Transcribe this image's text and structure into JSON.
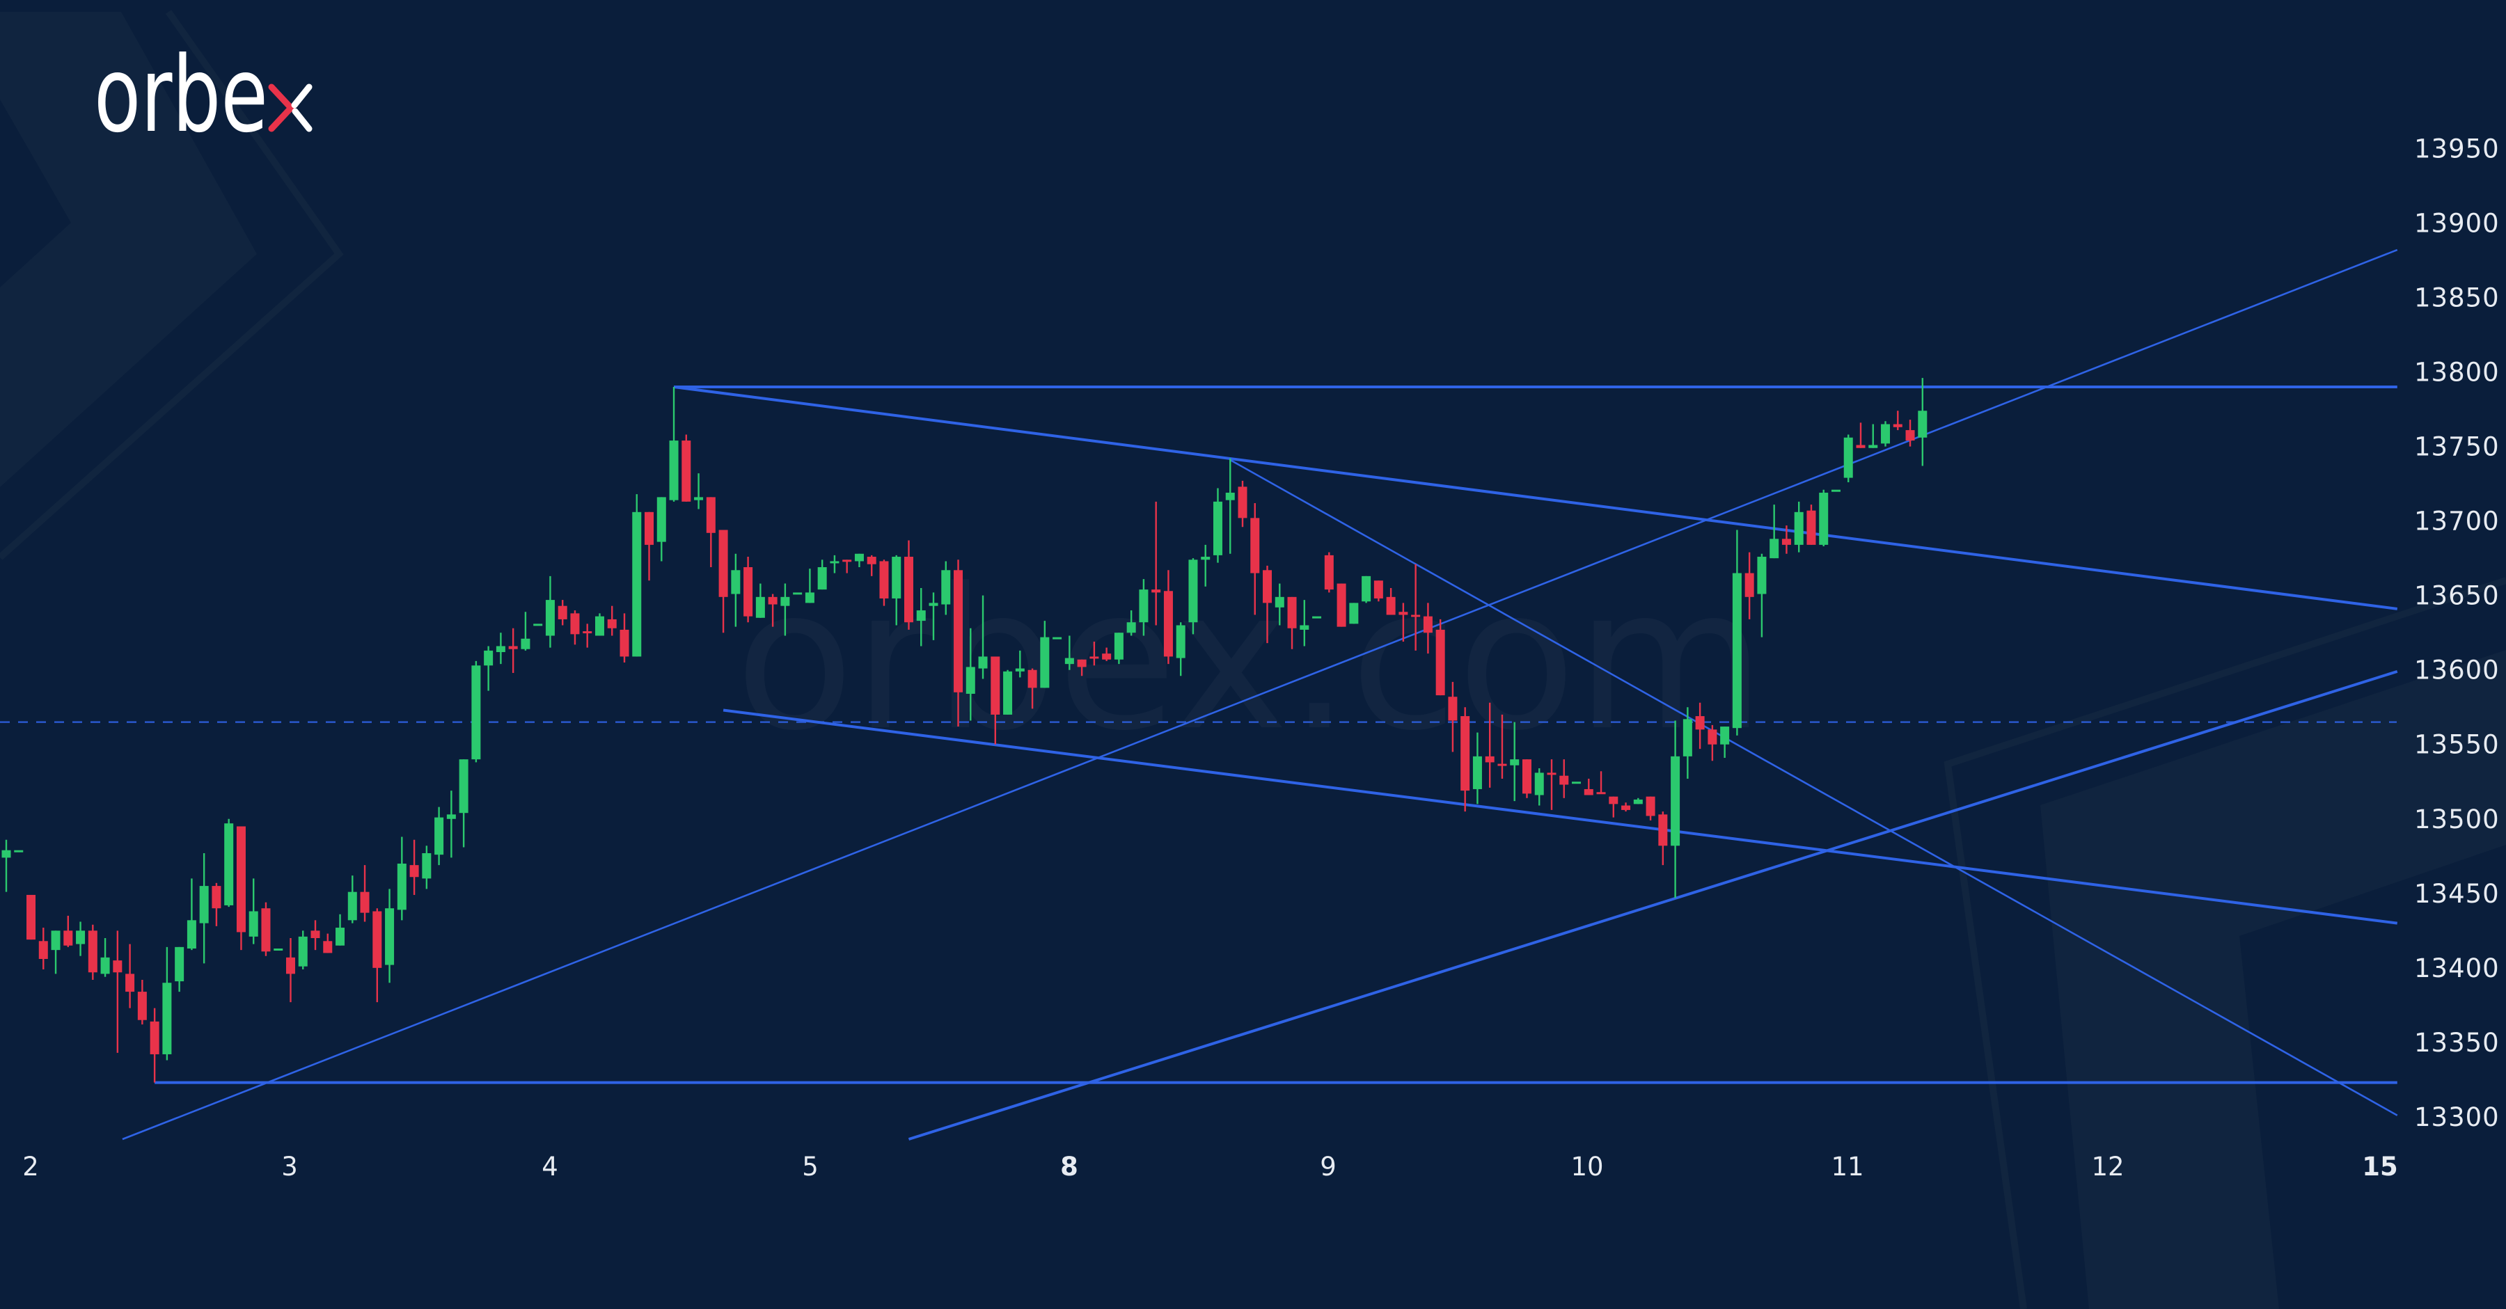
{
  "brand": {
    "logo_text": "orbex",
    "watermark": "orbex.com"
  },
  "colors": {
    "background": "#0a1e3b",
    "bullish": "#2bc96e",
    "bearish": "#e8334a",
    "trendline": "#2f63e6",
    "text": "#e8ecf2",
    "logo_accent": "#e8334a"
  },
  "chart_data": {
    "type": "candlestick",
    "title": "",
    "xlabel": "",
    "ylabel": "",
    "ylim": [
      13280,
      13980
    ],
    "grid": false,
    "y_ticks": [
      "13950",
      "13900",
      "13850",
      "13800",
      "13750",
      "13700",
      "13650",
      "13600",
      "13550",
      "13500",
      "13450",
      "13400",
      "13350",
      "13300"
    ],
    "x_ticks": [
      {
        "label": "2",
        "bold": false
      },
      {
        "label": "3",
        "bold": false
      },
      {
        "label": "4",
        "bold": false
      },
      {
        "label": "5",
        "bold": false
      },
      {
        "label": "8",
        "bold": true
      },
      {
        "label": "9",
        "bold": false
      },
      {
        "label": "10",
        "bold": false
      },
      {
        "label": "11",
        "bold": false
      },
      {
        "label": "12",
        "bold": false
      },
      {
        "label": "15",
        "bold": true
      }
    ],
    "ohlc_fields": [
      "open",
      "high",
      "low",
      "close"
    ],
    "candles": [
      [
        13474,
        13486,
        13451,
        13479
      ],
      [
        13479,
        13479,
        13479,
        13479
      ],
      [
        13449,
        13449,
        13419,
        13419
      ],
      [
        13418,
        13427,
        13399,
        13406
      ],
      [
        13412,
        13425,
        13396,
        13425
      ],
      [
        13425,
        13435,
        13414,
        13415
      ],
      [
        13416,
        13431,
        13408,
        13425
      ],
      [
        13425,
        13429,
        13392,
        13397
      ],
      [
        13396,
        13420,
        13394,
        13407
      ],
      [
        13405,
        13425,
        13343,
        13397
      ],
      [
        13396,
        13416,
        13373,
        13384
      ],
      [
        13384,
        13392,
        13362,
        13365
      ],
      [
        13364,
        13373,
        13323,
        13342
      ],
      [
        13342,
        13414,
        13338,
        13390
      ],
      [
        13391,
        13414,
        13384,
        13414
      ],
      [
        13413,
        13460,
        13412,
        13432
      ],
      [
        13430,
        13477,
        13403,
        13455
      ],
      [
        13455,
        13457,
        13428,
        13440
      ],
      [
        13442,
        13500,
        13441,
        13497
      ],
      [
        13495,
        13495,
        13412,
        13424
      ],
      [
        13421,
        13460,
        13416,
        13438
      ],
      [
        13440,
        13444,
        13408,
        13411
      ],
      [
        13413,
        13413,
        13413,
        13413
      ],
      [
        13407,
        13420,
        13377,
        13396
      ],
      [
        13401,
        13425,
        13399,
        13421
      ],
      [
        13425,
        13432,
        13412,
        13420
      ],
      [
        13418,
        13423,
        13410,
        13410
      ],
      [
        13415,
        13436,
        13415,
        13427
      ],
      [
        13432,
        13462,
        13430,
        13451
      ],
      [
        13451,
        13469,
        13431,
        13437
      ],
      [
        13438,
        13440,
        13377,
        13400
      ],
      [
        13402,
        13453,
        13390,
        13440
      ],
      [
        13439,
        13488,
        13432,
        13470
      ],
      [
        13469,
        13486,
        13449,
        13461
      ],
      [
        13460,
        13482,
        13453,
        13477
      ],
      [
        13476,
        13508,
        13469,
        13501
      ],
      [
        13500,
        13519,
        13474,
        13503
      ],
      [
        13504,
        13540,
        13481,
        13540
      ],
      [
        13540,
        13606,
        13538,
        13603
      ],
      [
        13603,
        13616,
        13586,
        13613
      ],
      [
        13612,
        13625,
        13604,
        13616
      ],
      [
        13616,
        13628,
        13598,
        13614
      ],
      [
        13614,
        13639,
        13613,
        13621
      ],
      [
        13631,
        13631,
        13631,
        13631
      ],
      [
        13623,
        13663,
        13615,
        13647
      ],
      [
        13643,
        13647,
        13630,
        13634
      ],
      [
        13638,
        13640,
        13617,
        13624
      ],
      [
        13626,
        13631,
        13615,
        13625
      ],
      [
        13623,
        13638,
        13623,
        13636
      ],
      [
        13634,
        13643,
        13623,
        13628
      ],
      [
        13627,
        13638,
        13605,
        13609
      ],
      [
        13609,
        13718,
        13609,
        13706
      ],
      [
        13706,
        13706,
        13660,
        13684
      ],
      [
        13686,
        13716,
        13673,
        13716
      ],
      [
        13714,
        13790,
        13713,
        13754
      ],
      [
        13754,
        13758,
        13713,
        13713
      ],
      [
        13714,
        13732,
        13708,
        13716
      ],
      [
        13716,
        13716,
        13669,
        13692
      ],
      [
        13694,
        13694,
        13625,
        13649
      ],
      [
        13651,
        13678,
        13629,
        13667
      ],
      [
        13669,
        13676,
        13632,
        13636
      ],
      [
        13635,
        13658,
        13635,
        13649
      ],
      [
        13649,
        13651,
        13629,
        13644
      ],
      [
        13643,
        13658,
        13623,
        13649
      ],
      [
        13652,
        13652,
        13652,
        13652
      ],
      [
        13645,
        13668,
        13645,
        13652
      ],
      [
        13654,
        13674,
        13654,
        13669
      ],
      [
        13673,
        13677,
        13665,
        13673
      ],
      [
        13674,
        13674,
        13665,
        13673
      ],
      [
        13673,
        13678,
        13669,
        13678
      ],
      [
        13676,
        13677,
        13663,
        13671
      ],
      [
        13673,
        13674,
        13643,
        13648
      ],
      [
        13648,
        13677,
        13630,
        13676
      ],
      [
        13676,
        13687,
        13627,
        13632
      ],
      [
        13633,
        13655,
        13616,
        13640
      ],
      [
        13643,
        13652,
        13620,
        13645
      ],
      [
        13644,
        13673,
        13637,
        13667
      ],
      [
        13667,
        13674,
        13562,
        13585
      ],
      [
        13584,
        13628,
        13566,
        13602
      ],
      [
        13601,
        13650,
        13594,
        13609
      ],
      [
        13609,
        13609,
        13550,
        13570
      ],
      [
        13570,
        13600,
        13570,
        13599
      ],
      [
        13599,
        13613,
        13595,
        13601
      ],
      [
        13600,
        13601,
        13574,
        13588
      ],
      [
        13588,
        13633,
        13588,
        13622
      ],
      [
        13622,
        13622,
        13622,
        13622
      ],
      [
        13604,
        13623,
        13600,
        13608
      ],
      [
        13607,
        13607,
        13596,
        13602
      ],
      [
        13609,
        13619,
        13603,
        13608
      ],
      [
        13611,
        13615,
        13606,
        13607
      ],
      [
        13607,
        13625,
        13604,
        13625
      ],
      [
        13625,
        13640,
        13623,
        13632
      ],
      [
        13632,
        13661,
        13623,
        13654
      ],
      [
        13654,
        13713,
        13630,
        13652
      ],
      [
        13653,
        13667,
        13604,
        13609
      ],
      [
        13608,
        13632,
        13596,
        13630
      ],
      [
        13632,
        13675,
        13624,
        13674
      ],
      [
        13674,
        13684,
        13656,
        13676
      ],
      [
        13677,
        13722,
        13672,
        13713
      ],
      [
        13714,
        13742,
        13678,
        13719
      ],
      [
        13723,
        13727,
        13696,
        13702
      ],
      [
        13702,
        13712,
        13637,
        13665
      ],
      [
        13667,
        13670,
        13618,
        13645
      ],
      [
        13642,
        13658,
        13630,
        13649
      ],
      [
        13649,
        13649,
        13614,
        13628
      ],
      [
        13627,
        13647,
        13616,
        13630
      ],
      [
        13636,
        13636,
        13636,
        13636
      ],
      [
        13677,
        13679,
        13652,
        13654
      ],
      [
        13658,
        13658,
        13629,
        13629
      ],
      [
        13631,
        13645,
        13631,
        13645
      ],
      [
        13646,
        13663,
        13645,
        13663
      ],
      [
        13660,
        13660,
        13646,
        13648
      ],
      [
        13649,
        13655,
        13637,
        13637
      ],
      [
        13639,
        13645,
        13619,
        13637
      ],
      [
        13637,
        13671,
        13613,
        13636
      ],
      [
        13636,
        13645,
        13611,
        13625
      ],
      [
        13627,
        13634,
        13583,
        13583
      ],
      [
        13582,
        13592,
        13545,
        13566
      ],
      [
        13569,
        13575,
        13505,
        13519
      ],
      [
        13520,
        13558,
        13510,
        13542
      ],
      [
        13542,
        13578,
        13521,
        13538
      ],
      [
        13537,
        13570,
        13527,
        13536
      ],
      [
        13536,
        13565,
        13512,
        13540
      ],
      [
        13540,
        13540,
        13514,
        13517
      ],
      [
        13516,
        13534,
        13509,
        13531
      ],
      [
        13531,
        13540,
        13506,
        13530
      ],
      [
        13529,
        13540,
        13514,
        13523
      ],
      [
        13525,
        13525,
        13525,
        13525
      ],
      [
        13520,
        13527,
        13516,
        13516
      ],
      [
        13518,
        13532,
        13517,
        13517
      ],
      [
        13515,
        13515,
        13501,
        13510
      ],
      [
        13509,
        13511,
        13505,
        13506
      ],
      [
        13510,
        13514,
        13510,
        13513
      ],
      [
        13515,
        13515,
        13499,
        13502
      ],
      [
        13503,
        13505,
        13469,
        13482
      ],
      [
        13482,
        13566,
        13447,
        13542
      ],
      [
        13542,
        13575,
        13527,
        13567
      ],
      [
        13569,
        13578,
        13547,
        13560
      ],
      [
        13560,
        13563,
        13539,
        13550
      ],
      [
        13550,
        13562,
        13541,
        13562
      ],
      [
        13561,
        13694,
        13556,
        13665
      ],
      [
        13665,
        13679,
        13634,
        13649
      ],
      [
        13651,
        13678,
        13622,
        13676
      ],
      [
        13675,
        13711,
        13675,
        13688
      ],
      [
        13688,
        13697,
        13678,
        13684
      ],
      [
        13684,
        13713,
        13679,
        13706
      ],
      [
        13707,
        13711,
        13684,
        13684
      ],
      [
        13684,
        13721,
        13683,
        13719
      ],
      [
        13721,
        13721,
        13721,
        13721
      ],
      [
        13729,
        13758,
        13726,
        13756
      ],
      [
        13751,
        13766,
        13749,
        13749
      ],
      [
        13749,
        13765,
        13749,
        13751
      ],
      [
        13752,
        13767,
        13750,
        13765
      ],
      [
        13765,
        13774,
        13761,
        13763
      ],
      [
        13761,
        13768,
        13750,
        13754
      ],
      [
        13756,
        13796,
        13737,
        13774
      ]
    ],
    "dashed_level": 13565,
    "trendlines": [
      {
        "from": [
          54,
          13790
        ],
        "to": [
          193.4,
          13790
        ],
        "weight": "thick"
      },
      {
        "from": [
          12,
          13323
        ],
        "to": [
          193.4,
          13323
        ],
        "weight": "thick"
      },
      {
        "from": [
          54,
          13790
        ],
        "to": [
          193.4,
          13641
        ],
        "weight": "thick"
      },
      {
        "from": [
          99,
          13741
        ],
        "to": [
          193.4,
          13301
        ],
        "weight": "thin"
      },
      {
        "from": [
          58,
          13573
        ],
        "to": [
          193.4,
          13430
        ],
        "weight": "thick"
      },
      {
        "from": [
          9.4,
          13285
        ],
        "to": [
          193.4,
          13882
        ],
        "weight": "thin"
      },
      {
        "from": [
          73,
          13285
        ],
        "to": [
          193.4,
          13599
        ],
        "weight": "thick"
      }
    ]
  }
}
